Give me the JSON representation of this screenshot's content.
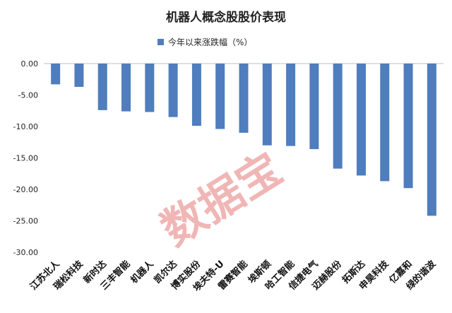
{
  "chart_data": {
    "type": "bar",
    "title": "机器人概念股股价表现",
    "legend": [
      "今年以来涨跌幅（%）"
    ],
    "legend_position": "top",
    "categories": [
      "江苏北人",
      "瑞松科技",
      "新时达",
      "三丰智能",
      "机器人",
      "凯尔达",
      "博实股份",
      "埃夫特-U",
      "雷赛智能",
      "埃斯顿",
      "哈工智能",
      "信捷电气",
      "迈赫股份",
      "拓斯达",
      "申昊科技",
      "亿嘉和",
      "绿的谐波"
    ],
    "series": [
      {
        "name": "今年以来涨跌幅（%）",
        "color": "#4f7dbd",
        "values": [
          -3.3,
          -3.7,
          -7.4,
          -7.6,
          -7.7,
          -8.5,
          -9.9,
          -10.4,
          -11.0,
          -13.0,
          -13.1,
          -13.6,
          -16.7,
          -17.8,
          -18.7,
          -19.8,
          -24.2
        ]
      }
    ],
    "ylim": [
      -30,
      0
    ],
    "yticks": [
      0,
      -5,
      -10,
      -15,
      -20,
      -25,
      -30
    ],
    "ytick_labels": [
      "0.00",
      "-5.00",
      "-10.00",
      "-15.00",
      "-20.00",
      "-25.00",
      "-30.00"
    ],
    "grid": false
  },
  "watermark": "数据宝"
}
